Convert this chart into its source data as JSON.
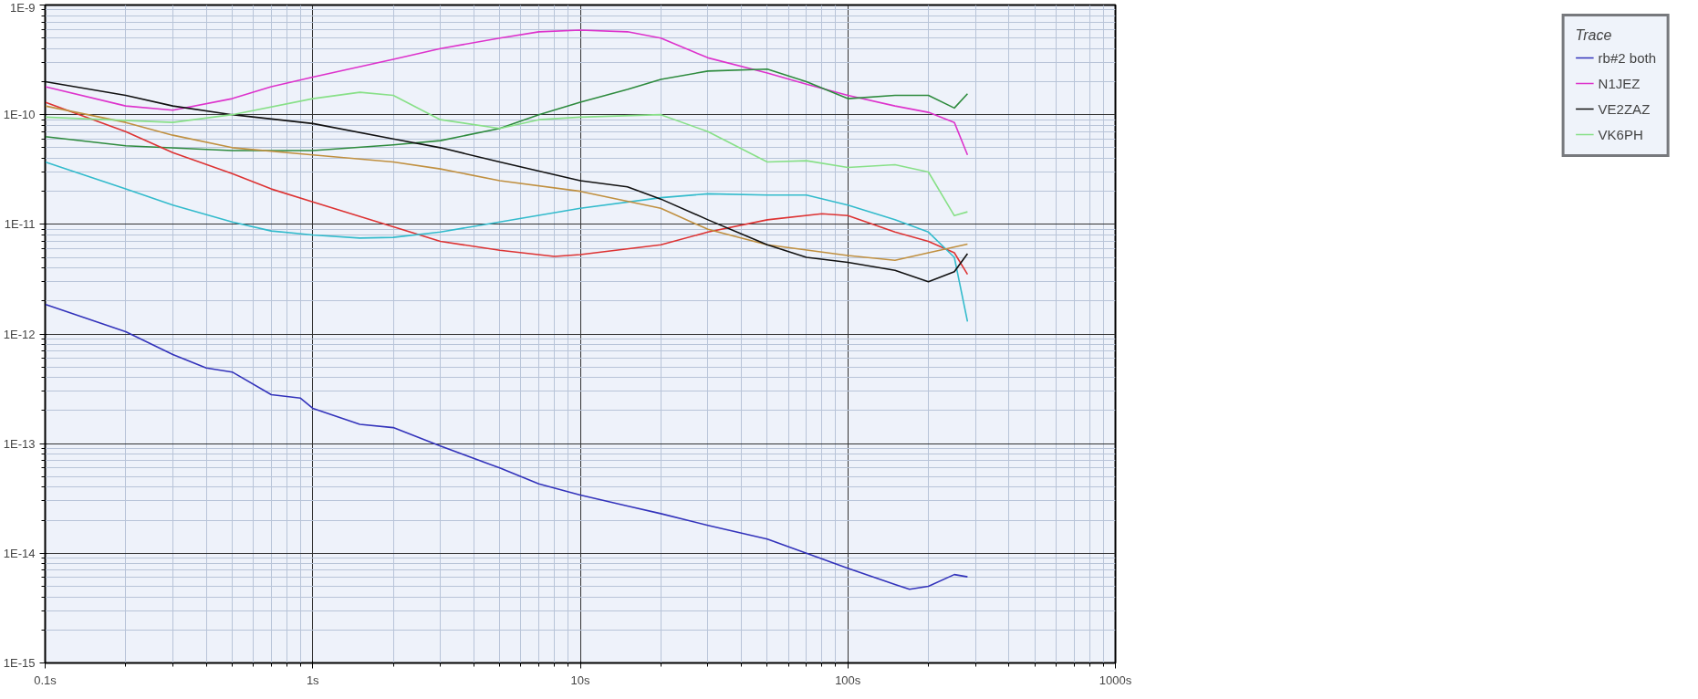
{
  "chart_data": {
    "type": "line",
    "log": "xy",
    "grid": true,
    "legend": "right",
    "legend_title": "Trace",
    "line_style": "solid",
    "marker": "none",
    "xlim": [
      0.1,
      1000
    ],
    "ylim": [
      1e-15,
      1e-09
    ],
    "xticks": [
      {
        "value": 0.1,
        "label": "0.1s"
      },
      {
        "value": 1,
        "label": "1s"
      },
      {
        "value": 10,
        "label": "10s"
      },
      {
        "value": 100,
        "label": "100s"
      },
      {
        "value": 1000,
        "label": "1000s"
      }
    ],
    "yticks": [
      {
        "value": 1e-15,
        "label": "1E-15"
      },
      {
        "value": 1e-14,
        "label": "1E-14"
      },
      {
        "value": 1e-13,
        "label": "1E-13"
      },
      {
        "value": 1e-12,
        "label": "1E-12"
      },
      {
        "value": 1e-11,
        "label": "1E-11"
      },
      {
        "value": 1e-10,
        "label": "1E-10"
      },
      {
        "value": 1e-09,
        "label": "1E-9"
      }
    ],
    "series": [
      {
        "name": "rb#2 both",
        "color": "#3333bb",
        "x": [
          0.1,
          0.2,
          0.3,
          0.4,
          0.5,
          0.7,
          0.9,
          1,
          1.5,
          2,
          3,
          5,
          7,
          10,
          15,
          20,
          30,
          50,
          70,
          100,
          150,
          170,
          200,
          250,
          280
        ],
        "values": [
          1.86e-12,
          1.05e-12,
          6.5e-13,
          4.9e-13,
          4.5e-13,
          2.8e-13,
          2.6e-13,
          2.1e-13,
          1.5e-13,
          1.4e-13,
          9.5e-14,
          6e-14,
          4.3e-14,
          3.4e-14,
          2.7e-14,
          2.3e-14,
          1.8e-14,
          1.35e-14,
          1e-14,
          7.3e-15,
          5.2e-15,
          4.7e-15,
          5e-15,
          6.4e-15,
          6.1e-15
        ]
      },
      {
        "name": "N1JEZ",
        "color": "#dd33cc",
        "x": [
          0.1,
          0.2,
          0.3,
          0.5,
          0.7,
          1,
          2,
          3,
          5,
          7,
          10,
          15,
          20,
          30,
          50,
          70,
          100,
          150,
          200,
          250,
          280
        ],
        "values": [
          1.8e-10,
          1.2e-10,
          1.1e-10,
          1.4e-10,
          1.8e-10,
          2.2e-10,
          3.2e-10,
          4e-10,
          5e-10,
          5.7e-10,
          5.9e-10,
          5.7e-10,
          5e-10,
          3.3e-10,
          2.4e-10,
          1.9e-10,
          1.5e-10,
          1.2e-10,
          1.05e-10,
          8.5e-11,
          4.3e-11
        ]
      },
      {
        "color": "#2e8b3e",
        "x": [
          0.1,
          0.2,
          0.5,
          1,
          2,
          3,
          5,
          7,
          10,
          15,
          20,
          30,
          50,
          70,
          100,
          150,
          200,
          250,
          280
        ],
        "values": [
          6.3e-11,
          5.2e-11,
          4.7e-11,
          4.7e-11,
          5.3e-11,
          5.8e-11,
          7.5e-11,
          1e-10,
          1.3e-10,
          1.7e-10,
          2.1e-10,
          2.5e-10,
          2.6e-10,
          2e-10,
          1.4e-10,
          1.5e-10,
          1.5e-10,
          1.15e-10,
          1.55e-10
        ]
      },
      {
        "color": "#dd3333",
        "x": [
          0.1,
          0.2,
          0.3,
          0.5,
          0.7,
          1,
          2,
          3,
          5,
          8,
          10,
          20,
          30,
          50,
          80,
          100,
          150,
          200,
          250,
          280
        ],
        "values": [
          1.3e-10,
          7e-11,
          4.5e-11,
          2.9e-11,
          2.1e-11,
          1.6e-11,
          9.5e-12,
          7e-12,
          5.8e-12,
          5.1e-12,
          5.3e-12,
          6.5e-12,
          8.5e-12,
          1.1e-11,
          1.25e-11,
          1.2e-11,
          8.5e-12,
          7e-12,
          5.5e-12,
          3.5e-12
        ]
      },
      {
        "color": "#33bbcc",
        "x": [
          0.1,
          0.2,
          0.3,
          0.5,
          0.7,
          1,
          1.5,
          2,
          3,
          5,
          10,
          20,
          30,
          50,
          70,
          100,
          150,
          200,
          250,
          280
        ],
        "values": [
          3.7e-11,
          2.1e-11,
          1.5e-11,
          1.05e-11,
          8.7e-12,
          8e-12,
          7.5e-12,
          7.6e-12,
          8.5e-12,
          1.05e-11,
          1.4e-11,
          1.75e-11,
          1.9e-11,
          1.85e-11,
          1.85e-11,
          1.5e-11,
          1.1e-11,
          8.5e-12,
          5e-12,
          1.3e-12
        ]
      },
      {
        "color": "#c09040",
        "x": [
          0.1,
          0.2,
          0.3,
          0.5,
          1,
          2,
          3,
          5,
          10,
          20,
          30,
          50,
          100,
          150,
          200,
          280
        ],
        "values": [
          1.2e-10,
          8.5e-11,
          6.5e-11,
          5e-11,
          4.3e-11,
          3.7e-11,
          3.2e-11,
          2.5e-11,
          2e-11,
          1.4e-11,
          9e-12,
          6.5e-12,
          5.2e-12,
          4.7e-12,
          5.5e-12,
          6.6e-12
        ]
      },
      {
        "name": "VE2ZAZ",
        "color": "#111111",
        "x": [
          0.1,
          0.2,
          0.3,
          0.5,
          1,
          2,
          3,
          5,
          10,
          15,
          20,
          30,
          50,
          70,
          100,
          150,
          200,
          250,
          280
        ],
        "values": [
          2e-10,
          1.5e-10,
          1.2e-10,
          1e-10,
          8.3e-11,
          6e-11,
          5e-11,
          3.7e-11,
          2.5e-11,
          2.2e-11,
          1.7e-11,
          1.1e-11,
          6.5e-12,
          5e-12,
          4.5e-12,
          3.8e-12,
          3e-12,
          3.7e-12,
          5.4e-12
        ]
      },
      {
        "name": "VK6PH",
        "color": "#88e088",
        "x": [
          0.1,
          0.3,
          0.5,
          1,
          1.5,
          2,
          3,
          5,
          7,
          10,
          20,
          30,
          50,
          70,
          100,
          150,
          200,
          250,
          280
        ],
        "values": [
          9.5e-11,
          8.5e-11,
          1e-10,
          1.4e-10,
          1.6e-10,
          1.5e-10,
          9e-11,
          7.5e-11,
          9e-11,
          9.5e-11,
          1e-10,
          7e-11,
          3.7e-11,
          3.8e-11,
          3.3e-11,
          3.5e-11,
          3e-11,
          1.2e-11,
          1.3e-11
        ]
      }
    ]
  }
}
